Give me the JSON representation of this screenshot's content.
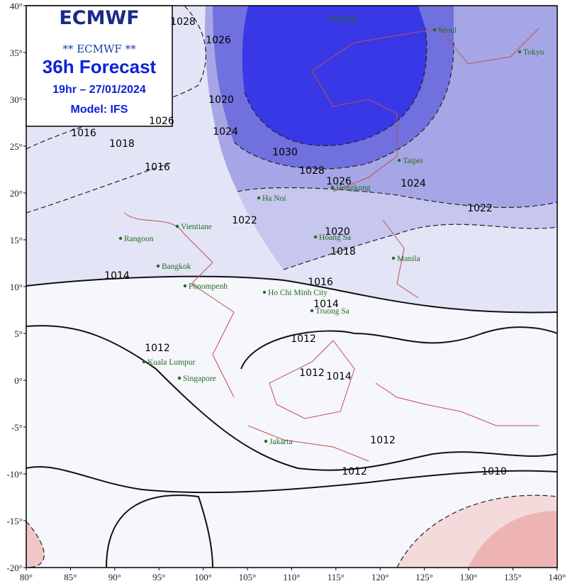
{
  "header": {
    "logo": "ECMWF",
    "subtitle": "** ECMWF **",
    "title": "36h Forecast",
    "time": "19hr – 27/01/2024",
    "model": "Model: IFS"
  },
  "axes": {
    "lat_labels": [
      "40°",
      "35°",
      "30°",
      "25°",
      "20°",
      "15°",
      "10°",
      "5°",
      "0°",
      "-5°",
      "-10°",
      "-15°",
      "-20°"
    ],
    "lon_labels": [
      "80°",
      "85°",
      "90°",
      "95°",
      "100°",
      "105°",
      "110°",
      "115°",
      "120°",
      "125°",
      "130°",
      "135°",
      "140°"
    ]
  },
  "cities": [
    "Beijing",
    "Seoul",
    "Tokyo",
    "Taipei",
    "Hongkong",
    "Ha Noi",
    "Vientiane",
    "Rangoon",
    "Hoang Sa",
    "Manila",
    "Bangkok",
    "Phnompenh",
    "Ho Chi Minh City",
    "Truong Sa",
    "Kuala Lumpur",
    "Singapore",
    "Jakarta"
  ],
  "isobar_labels": [
    "1028",
    "1026",
    "1020",
    "1024",
    "1026",
    "1016",
    "1018",
    "1016",
    "1030",
    "1028",
    "1026",
    "1024",
    "1022",
    "1022",
    "1020",
    "1018",
    "1016",
    "1014",
    "1014",
    "1012",
    "1012",
    "1012",
    "1014",
    "1012",
    "1012",
    "1010"
  ]
}
